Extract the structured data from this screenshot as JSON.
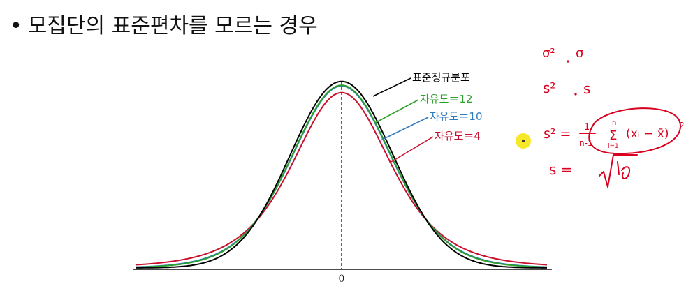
{
  "title": {
    "bullet": "•",
    "text": "모집단의 표준편차를 모르는 경우"
  },
  "chart_data": {
    "type": "line",
    "x_tick_labels": [
      "0"
    ],
    "xlim": [
      -4,
      4
    ],
    "series": [
      {
        "name": "표준정규분포",
        "color": "#000000",
        "df": null,
        "peak": 0.399
      },
      {
        "name": "자유도＝12",
        "color": "#2ca02c",
        "df": 12,
        "peak": 0.391
      },
      {
        "name": "자유도＝10",
        "color": "#2f7bbf",
        "df": 10,
        "peak": 0.389
      },
      {
        "name": "자유도＝4",
        "color": "#c8102e",
        "df": 4,
        "peak": 0.375
      }
    ]
  },
  "annotations": {
    "color": "#d8001e",
    "line1_left": "σ²",
    "line1_right": "σ",
    "line2_left": "s²",
    "line2_right": "s",
    "formula_lhs": "s² =",
    "formula_fraction_num": "1",
    "formula_fraction_den": "n-1",
    "formula_sum": "Σ",
    "formula_sum_top": "n",
    "formula_sum_bottom": "i=1",
    "formula_body": "(xᵢ − x̄)",
    "formula_exp": "2",
    "sd_lhs": "s =",
    "highlight_dot_color": "#f4e400"
  }
}
